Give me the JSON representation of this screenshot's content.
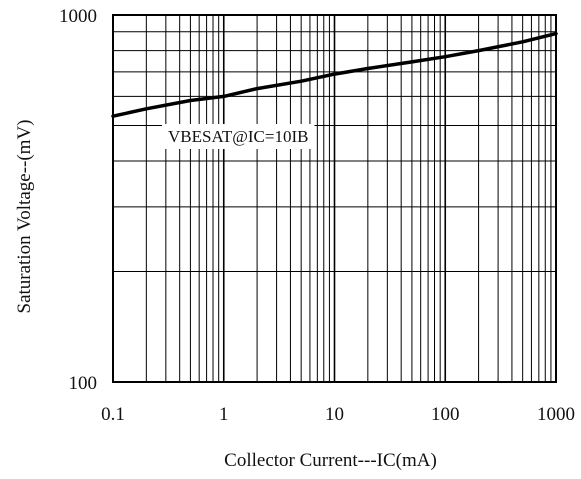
{
  "chart_data": {
    "type": "line",
    "title": "",
    "xlabel": "Collector Current---IC(mA)",
    "ylabel": "Saturation Voltage--(mV)",
    "xscale": "log",
    "yscale": "log",
    "xlim": [
      0.1,
      1000
    ],
    "ylim": [
      100,
      1000
    ],
    "grid": true,
    "x_tick_labels": [
      "0.1",
      "1",
      "10",
      "100",
      "1000"
    ],
    "y_tick_labels": [
      "100",
      "1000"
    ],
    "annotation": "VBESAT@IC=10IB",
    "colors": {
      "line": "#000000",
      "grid": "#000000",
      "background": "#ffffff"
    },
    "series": [
      {
        "x": [
          0.1,
          0.2,
          0.5,
          1,
          2,
          5,
          10,
          20,
          50,
          100,
          200,
          500,
          1000
        ],
        "y": [
          530,
          555,
          585,
          600,
          630,
          660,
          690,
          715,
          745,
          770,
          800,
          845,
          890
        ]
      }
    ]
  }
}
